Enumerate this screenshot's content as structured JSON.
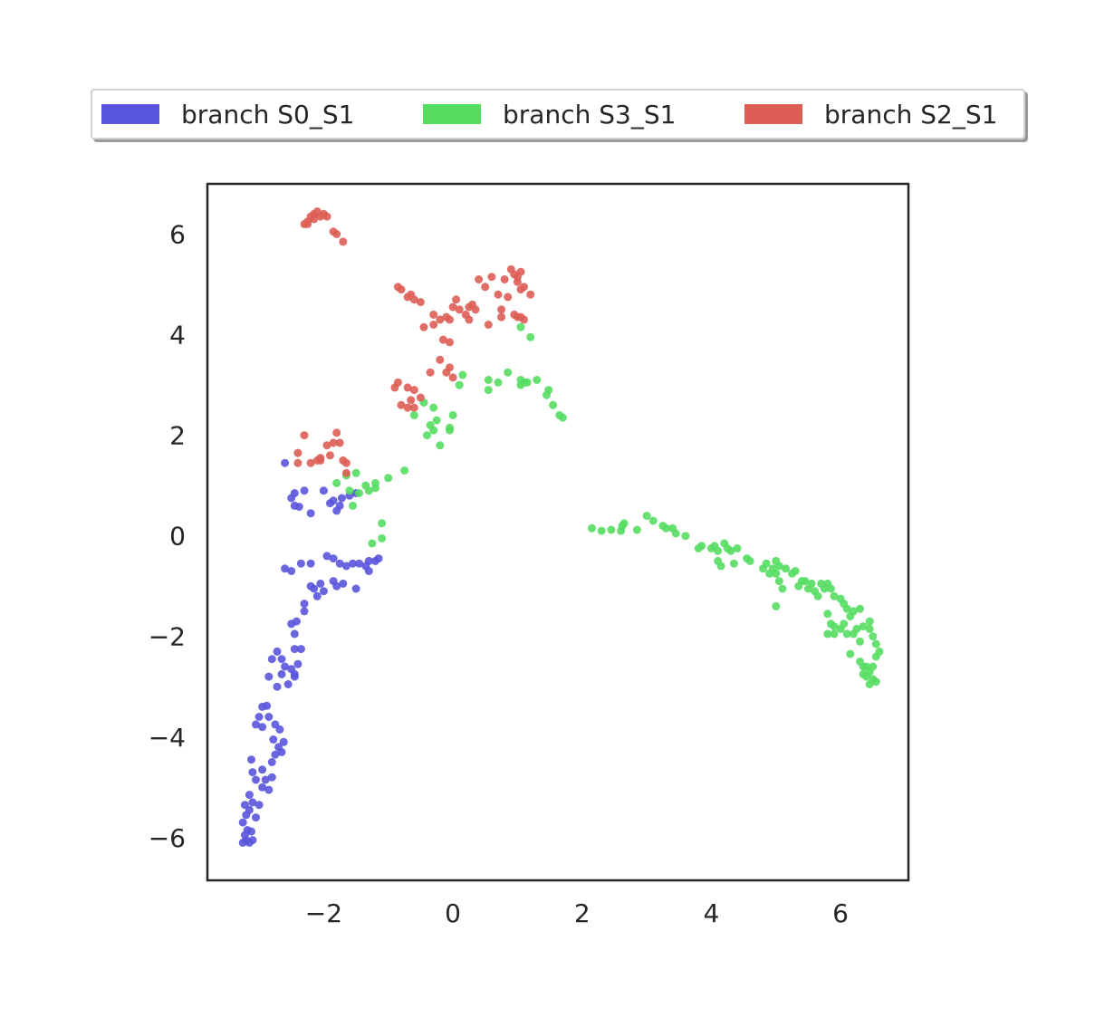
{
  "chart_data": {
    "type": "scatter",
    "title": "",
    "xlabel": "",
    "ylabel": "",
    "xlim": [
      -3.8,
      7.05
    ],
    "ylim": [
      -6.85,
      7.0
    ],
    "xticks": [
      -2,
      0,
      2,
      4,
      6
    ],
    "yticks": [
      -6,
      -4,
      -2,
      0,
      2,
      4,
      6
    ],
    "xtick_labels": [
      "−2",
      "0",
      "2",
      "4",
      "6"
    ],
    "ytick_labels": [
      "−6",
      "−4",
      "−2",
      "0",
      "2",
      "4",
      "6"
    ],
    "grid": false,
    "legend_position": "top-center",
    "series": [
      {
        "name": "branch S0_S1",
        "color": "#5a55dd",
        "points": [
          [
            -3.25,
            -6.1
          ],
          [
            -3.2,
            -6.05
          ],
          [
            -3.15,
            -6.1
          ],
          [
            -3.1,
            -6.05
          ],
          [
            -3.22,
            -5.95
          ],
          [
            -3.18,
            -5.85
          ],
          [
            -3.12,
            -5.88
          ],
          [
            -3.25,
            -5.7
          ],
          [
            -3.2,
            -5.55
          ],
          [
            -3.05,
            -5.6
          ],
          [
            -3.15,
            -5.45
          ],
          [
            -3.22,
            -5.35
          ],
          [
            -3.1,
            -5.3
          ],
          [
            -3.0,
            -5.35
          ],
          [
            -3.15,
            -5.15
          ],
          [
            -2.95,
            -5.0
          ],
          [
            -2.85,
            -5.05
          ],
          [
            -3.05,
            -4.85
          ],
          [
            -2.9,
            -4.85
          ],
          [
            -2.8,
            -4.8
          ],
          [
            -3.1,
            -4.7
          ],
          [
            -2.95,
            -4.65
          ],
          [
            -3.12,
            -4.45
          ],
          [
            -2.8,
            -4.5
          ],
          [
            -2.75,
            -4.35
          ],
          [
            -2.7,
            -4.2
          ],
          [
            -2.62,
            -4.1
          ],
          [
            -2.65,
            -4.3
          ],
          [
            -2.78,
            -4.05
          ],
          [
            -3.05,
            -3.75
          ],
          [
            -2.95,
            -3.8
          ],
          [
            -2.75,
            -3.75
          ],
          [
            -2.68,
            -3.85
          ],
          [
            -3.0,
            -3.6
          ],
          [
            -2.85,
            -3.6
          ],
          [
            -2.95,
            -3.4
          ],
          [
            -2.88,
            -3.38
          ],
          [
            -2.72,
            -3.0
          ],
          [
            -2.55,
            -2.95
          ],
          [
            -2.85,
            -2.8
          ],
          [
            -2.65,
            -2.75
          ],
          [
            -2.5,
            -2.65
          ],
          [
            -2.6,
            -2.6
          ],
          [
            -2.45,
            -2.8
          ],
          [
            -2.45,
            -2.75
          ],
          [
            -2.65,
            -2.45
          ],
          [
            -2.8,
            -2.45
          ],
          [
            -2.4,
            -2.55
          ],
          [
            -2.72,
            -2.3
          ],
          [
            -2.35,
            -2.25
          ],
          [
            -2.45,
            -2.25
          ],
          [
            -2.45,
            -1.95
          ],
          [
            -2.5,
            -1.75
          ],
          [
            -2.42,
            -1.7
          ],
          [
            -2.3,
            -1.5
          ],
          [
            -2.3,
            -1.35
          ],
          [
            -2.2,
            -1.0
          ],
          [
            -2.15,
            -1.05
          ],
          [
            -2.1,
            -1.2
          ],
          [
            -2.05,
            -0.95
          ],
          [
            -2.0,
            -1.1
          ],
          [
            -1.8,
            -1.0
          ],
          [
            -1.85,
            -0.9
          ],
          [
            -1.7,
            -0.95
          ],
          [
            -1.5,
            -1.05
          ],
          [
            -2.6,
            -0.65
          ],
          [
            -2.5,
            -0.7
          ],
          [
            -2.35,
            -0.55
          ],
          [
            -2.2,
            -0.55
          ],
          [
            -1.95,
            -0.4
          ],
          [
            -1.85,
            -0.45
          ],
          [
            -1.75,
            -0.55
          ],
          [
            -1.65,
            -0.6
          ],
          [
            -1.55,
            -0.55
          ],
          [
            -1.45,
            -0.55
          ],
          [
            -1.35,
            -0.6
          ],
          [
            -1.3,
            -0.5
          ],
          [
            -1.2,
            -0.5
          ],
          [
            -1.3,
            -0.7
          ],
          [
            -1.15,
            -0.45
          ],
          [
            -2.6,
            1.45
          ],
          [
            -2.5,
            0.75
          ],
          [
            -2.45,
            0.6
          ],
          [
            -2.45,
            0.85
          ],
          [
            -2.38,
            0.58
          ],
          [
            -2.3,
            0.9
          ],
          [
            -2.2,
            0.45
          ],
          [
            -2.0,
            0.9
          ],
          [
            -1.85,
            0.7
          ],
          [
            -1.8,
            0.5
          ],
          [
            -1.75,
            0.6
          ],
          [
            -1.72,
            0.75
          ],
          [
            -1.9,
            0.65
          ],
          [
            -1.6,
            0.8
          ],
          [
            -1.5,
            0.85
          ]
        ]
      },
      {
        "name": "branch S3_S1",
        "color": "#55dd62",
        "points": [
          [
            -1.8,
            1.05
          ],
          [
            -1.65,
            1.2
          ],
          [
            -1.5,
            1.25
          ],
          [
            -1.35,
            1.0
          ],
          [
            -1.3,
            0.9
          ],
          [
            -1.45,
            0.85
          ],
          [
            -1.6,
            0.9
          ],
          [
            -1.55,
            0.6
          ],
          [
            -1.2,
            1.05
          ],
          [
            -1.2,
            0.95
          ],
          [
            -1.0,
            1.15
          ],
          [
            -0.75,
            1.3
          ],
          [
            -1.1,
            0.25
          ],
          [
            -1.1,
            -0.05
          ],
          [
            -1.25,
            -0.15
          ],
          [
            -0.6,
            2.4
          ],
          [
            -0.45,
            2.65
          ],
          [
            -0.4,
            2.0
          ],
          [
            -0.35,
            2.2
          ],
          [
            -0.3,
            2.1
          ],
          [
            -0.3,
            2.55
          ],
          [
            -0.25,
            2.3
          ],
          [
            -0.2,
            1.8
          ],
          [
            -0.05,
            2.1
          ],
          [
            -0.05,
            2.15
          ],
          [
            0.0,
            2.4
          ],
          [
            0.1,
            3.0
          ],
          [
            0.15,
            3.2
          ],
          [
            0.55,
            3.1
          ],
          [
            0.55,
            2.9
          ],
          [
            0.7,
            3.05
          ],
          [
            0.85,
            3.25
          ],
          [
            1.05,
            3.1
          ],
          [
            1.05,
            3.0
          ],
          [
            1.1,
            3.05
          ],
          [
            1.15,
            3.05
          ],
          [
            1.3,
            3.1
          ],
          [
            1.45,
            2.8
          ],
          [
            1.48,
            2.9
          ],
          [
            1.55,
            2.6
          ],
          [
            1.65,
            2.4
          ],
          [
            1.7,
            2.35
          ],
          [
            1.05,
            4.15
          ],
          [
            1.2,
            3.95
          ],
          [
            2.15,
            0.15
          ],
          [
            2.3,
            0.1
          ],
          [
            2.45,
            0.12
          ],
          [
            2.6,
            0.1
          ],
          [
            2.62,
            0.2
          ],
          [
            2.65,
            0.25
          ],
          [
            2.85,
            0.12
          ],
          [
            3.0,
            0.4
          ],
          [
            3.1,
            0.3
          ],
          [
            3.25,
            0.2
          ],
          [
            3.3,
            0.15
          ],
          [
            3.4,
            0.15
          ],
          [
            3.45,
            0.05
          ],
          [
            3.6,
            0.0
          ],
          [
            3.8,
            -0.25
          ],
          [
            3.85,
            -0.2
          ],
          [
            4.0,
            -0.25
          ],
          [
            4.05,
            -0.2
          ],
          [
            4.1,
            -0.3
          ],
          [
            4.1,
            -0.5
          ],
          [
            4.15,
            -0.6
          ],
          [
            4.2,
            -0.15
          ],
          [
            4.25,
            -0.25
          ],
          [
            4.3,
            -0.3
          ],
          [
            4.35,
            -0.55
          ],
          [
            4.4,
            -0.25
          ],
          [
            4.55,
            -0.45
          ],
          [
            4.6,
            -0.5
          ],
          [
            4.8,
            -0.65
          ],
          [
            4.85,
            -0.55
          ],
          [
            4.9,
            -0.75
          ],
          [
            4.95,
            -0.65
          ],
          [
            5.0,
            -0.5
          ],
          [
            5.0,
            -0.75
          ],
          [
            5.05,
            -0.6
          ],
          [
            5.05,
            -0.9
          ],
          [
            5.1,
            -1.05
          ],
          [
            5.15,
            -0.65
          ],
          [
            5.25,
            -0.75
          ],
          [
            5.3,
            -0.7
          ],
          [
            5.35,
            -1.0
          ],
          [
            5.4,
            -0.9
          ],
          [
            5.45,
            -0.9
          ],
          [
            5.5,
            -1.05
          ],
          [
            5.55,
            -0.95
          ],
          [
            5.6,
            -1.1
          ],
          [
            5.65,
            -1.2
          ],
          [
            5.7,
            -0.95
          ],
          [
            5.75,
            -1.05
          ],
          [
            5.8,
            -0.95
          ],
          [
            5.85,
            -1.05
          ],
          [
            5.9,
            -1.2
          ],
          [
            6.0,
            -1.25
          ],
          [
            6.05,
            -1.35
          ],
          [
            6.1,
            -1.45
          ],
          [
            6.15,
            -1.6
          ],
          [
            6.2,
            -1.5
          ],
          [
            6.3,
            -1.45
          ],
          [
            5.0,
            -1.4
          ],
          [
            5.8,
            -1.55
          ],
          [
            5.85,
            -1.75
          ],
          [
            5.9,
            -1.8
          ],
          [
            6.0,
            -1.85
          ],
          [
            6.05,
            -1.75
          ],
          [
            6.1,
            -1.95
          ],
          [
            6.2,
            -1.95
          ],
          [
            6.25,
            -1.85
          ],
          [
            6.3,
            -2.1
          ],
          [
            6.35,
            -1.8
          ],
          [
            6.45,
            -1.7
          ],
          [
            6.45,
            -1.85
          ],
          [
            6.5,
            -2.0
          ],
          [
            6.55,
            -2.15
          ],
          [
            6.6,
            -2.3
          ],
          [
            6.55,
            -2.4
          ],
          [
            6.5,
            -2.6
          ],
          [
            6.45,
            -2.7
          ],
          [
            6.4,
            -2.8
          ],
          [
            6.5,
            -2.85
          ],
          [
            6.55,
            -2.9
          ],
          [
            6.45,
            -2.95
          ],
          [
            6.35,
            -2.6
          ],
          [
            6.35,
            -2.75
          ],
          [
            6.4,
            -2.6
          ],
          [
            6.3,
            -2.5
          ],
          [
            6.15,
            -2.35
          ],
          [
            5.9,
            -1.95
          ],
          [
            5.8,
            -1.95
          ]
        ]
      },
      {
        "name": "branch S2_S1",
        "color": "#dd5e55",
        "points": [
          [
            -2.3,
            6.2
          ],
          [
            -2.25,
            6.25
          ],
          [
            -2.2,
            6.35
          ],
          [
            -2.15,
            6.4
          ],
          [
            -2.1,
            6.45
          ],
          [
            -2.05,
            6.35
          ],
          [
            -2.0,
            6.4
          ],
          [
            -1.95,
            6.35
          ],
          [
            -1.85,
            6.05
          ],
          [
            -1.8,
            6.0
          ],
          [
            -1.7,
            5.85
          ],
          [
            -2.25,
            6.2
          ],
          [
            -2.15,
            6.3
          ],
          [
            -0.85,
            4.95
          ],
          [
            -0.8,
            4.9
          ],
          [
            -0.7,
            4.75
          ],
          [
            -0.65,
            4.8
          ],
          [
            -0.6,
            4.7
          ],
          [
            -0.5,
            4.65
          ],
          [
            -0.45,
            4.15
          ],
          [
            -0.3,
            4.2
          ],
          [
            -0.3,
            4.4
          ],
          [
            -0.2,
            4.3
          ],
          [
            -0.15,
            3.9
          ],
          [
            -0.1,
            4.35
          ],
          [
            -0.05,
            4.3
          ],
          [
            -0.05,
            3.85
          ],
          [
            0.0,
            4.55
          ],
          [
            0.05,
            4.7
          ],
          [
            0.1,
            4.5
          ],
          [
            0.2,
            4.4
          ],
          [
            0.25,
            4.3
          ],
          [
            0.25,
            4.55
          ],
          [
            0.3,
            4.6
          ],
          [
            0.35,
            4.5
          ],
          [
            0.4,
            5.1
          ],
          [
            0.5,
            4.95
          ],
          [
            0.55,
            4.2
          ],
          [
            0.6,
            5.15
          ],
          [
            0.7,
            4.8
          ],
          [
            0.75,
            4.35
          ],
          [
            0.75,
            4.5
          ],
          [
            0.8,
            5.1
          ],
          [
            0.85,
            4.75
          ],
          [
            0.9,
            5.3
          ],
          [
            0.95,
            5.2
          ],
          [
            1.0,
            5.15
          ],
          [
            1.0,
            5.05
          ],
          [
            1.05,
            5.25
          ],
          [
            1.05,
            4.9
          ],
          [
            1.1,
            4.95
          ],
          [
            1.2,
            4.8
          ],
          [
            0.95,
            4.4
          ],
          [
            1.0,
            4.35
          ],
          [
            1.05,
            4.35
          ],
          [
            1.1,
            4.3
          ],
          [
            -0.9,
            2.95
          ],
          [
            -0.85,
            3.05
          ],
          [
            -0.7,
            2.95
          ],
          [
            -0.6,
            2.9
          ],
          [
            -0.5,
            2.75
          ],
          [
            -0.35,
            3.25
          ],
          [
            -0.2,
            3.5
          ],
          [
            -0.1,
            3.25
          ],
          [
            -0.05,
            3.35
          ],
          [
            0.0,
            3.15
          ],
          [
            -0.8,
            2.6
          ],
          [
            -0.7,
            2.55
          ],
          [
            -0.65,
            2.7
          ],
          [
            -0.6,
            2.55
          ],
          [
            -2.4,
            1.65
          ],
          [
            -2.4,
            1.45
          ],
          [
            -2.2,
            1.45
          ],
          [
            -2.3,
            2.0
          ],
          [
            -2.1,
            1.5
          ],
          [
            -2.05,
            1.55
          ],
          [
            -1.95,
            1.8
          ],
          [
            -1.9,
            1.6
          ],
          [
            -1.85,
            1.85
          ],
          [
            -1.8,
            2.05
          ],
          [
            -1.75,
            1.85
          ],
          [
            -1.7,
            1.5
          ],
          [
            -1.65,
            1.45
          ],
          [
            -2.05,
            1.5
          ],
          [
            -1.65,
            1.25
          ]
        ]
      }
    ]
  }
}
